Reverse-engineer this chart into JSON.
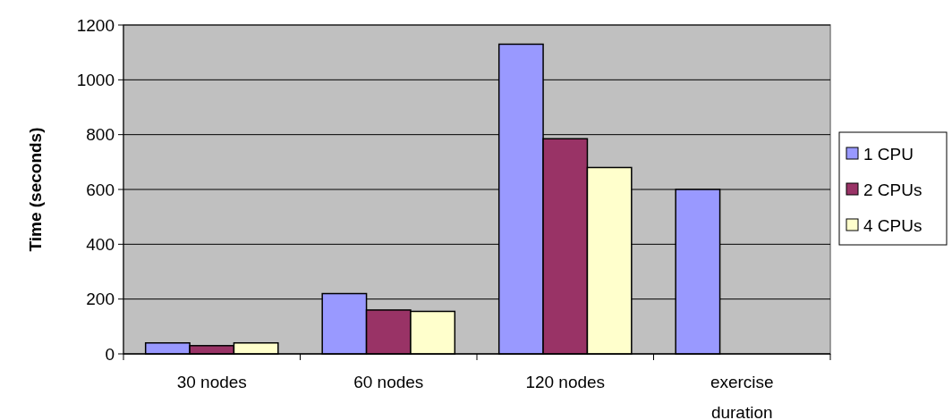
{
  "chart_data": {
    "type": "bar",
    "ylabel": "Time (seconds)",
    "categories": [
      "30 nodes",
      "60 nodes",
      "120 nodes",
      "exercise duration"
    ],
    "series": [
      {
        "name": "1 CPU",
        "color": "#9999ff",
        "values": [
          40,
          220,
          1130,
          600
        ]
      },
      {
        "name": "2 CPUs",
        "color": "#993366",
        "values": [
          30,
          160,
          785,
          null
        ]
      },
      {
        "name": "4 CPUs",
        "color": "#ffffcc",
        "values": [
          40,
          155,
          680,
          null
        ]
      }
    ],
    "ylim": [
      0,
      1200
    ],
    "yticks": [
      0,
      200,
      400,
      600,
      800,
      1000,
      1200
    ],
    "grid": "y",
    "legend": "right"
  }
}
